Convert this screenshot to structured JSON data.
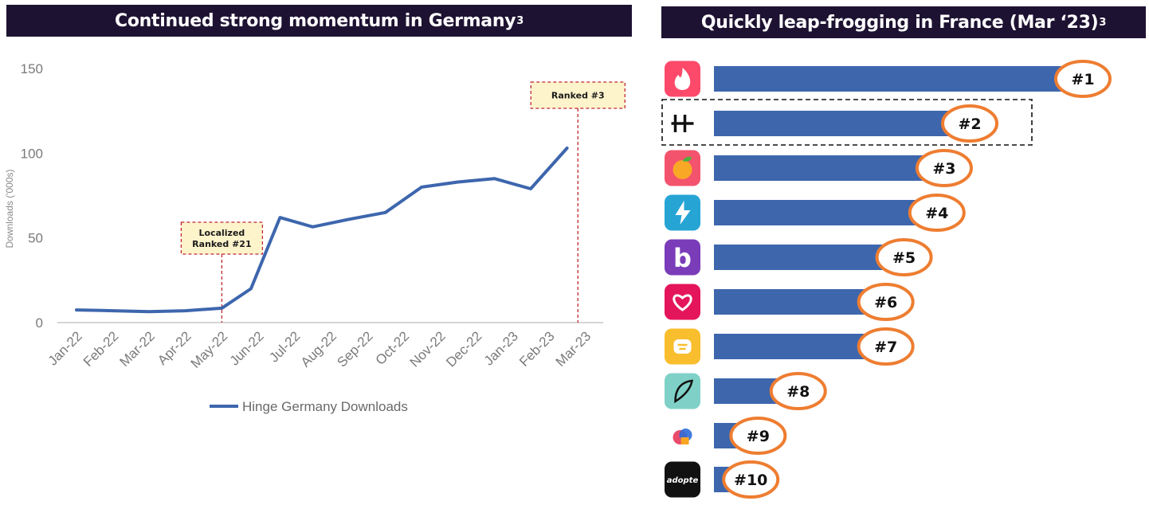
{
  "left_panel": {
    "title": "Continued strong momentum in Germany",
    "title_sup": "3"
  },
  "right_panel": {
    "title": "Quickly leap-frogging in France (Mar ‘23)",
    "title_sup": "3"
  },
  "chart_data": [
    {
      "type": "line",
      "title": "Continued strong momentum in Germany³",
      "ylabel": "Downloads ('000s)",
      "xlabel": "",
      "ylim": [
        0,
        150
      ],
      "yticks": [
        0,
        50,
        100,
        150
      ],
      "categories": [
        "Jan-22",
        "Feb-22",
        "Mar-22",
        "Apr-22",
        "May-22",
        "Jun-22",
        "Jul-22",
        "Aug-22",
        "Sep-22",
        "Oct-22",
        "Nov-22",
        "Dec-22",
        "Jan-23",
        "Feb-23",
        "Mar-23"
      ],
      "series": [
        {
          "name": "Hinge Germany Downloads",
          "color": "#3d66ad",
          "points": [
            {
              "x": 0,
              "y": 7.5
            },
            {
              "x": 1,
              "y": 7
            },
            {
              "x": 2,
              "y": 6.5
            },
            {
              "x": 3,
              "y": 7
            },
            {
              "x": 4,
              "y": 8.5
            },
            {
              "x": 4.8,
              "y": 20
            },
            {
              "x": 5.6,
              "y": 62
            },
            {
              "x": 6.5,
              "y": 56.5
            },
            {
              "x": 7.5,
              "y": 61
            },
            {
              "x": 8.5,
              "y": 65
            },
            {
              "x": 9.5,
              "y": 80
            },
            {
              "x": 10.5,
              "y": 83
            },
            {
              "x": 11.5,
              "y": 85
            },
            {
              "x": 12.5,
              "y": 79
            },
            {
              "x": 13.5,
              "y": 103
            }
          ]
        }
      ],
      "annotations": [
        {
          "x": 4,
          "lines": [
            "Localized",
            "Ranked #21"
          ]
        },
        {
          "x": 13.8,
          "lines": [
            "Ranked #3"
          ]
        }
      ],
      "legend_position": "bottom"
    },
    {
      "type": "bar",
      "orientation": "horizontal",
      "title": "Quickly leap-frogging in France (Mar ‘23)³",
      "bar_color": "#3d66ad",
      "highlight_color": "#ee7d31",
      "categories": [
        "#1",
        "#2",
        "#3",
        "#4",
        "#5",
        "#6",
        "#7",
        "#8",
        "#9",
        "#10"
      ],
      "values": [
        100,
        69,
        62,
        60,
        51,
        46,
        46,
        22,
        11,
        9
      ],
      "highlighted_category": "#2",
      "apps": [
        {
          "icon": "tinder-flame-icon",
          "color": "#fd4a6a"
        },
        {
          "icon": "hinge-h-icon",
          "color": "#111111"
        },
        {
          "icon": "peach-icon",
          "color": "#f4536d"
        },
        {
          "icon": "happn-bolt-icon",
          "color": "#26a5d5"
        },
        {
          "icon": "badoo-b-icon",
          "color": "#7a3cb8"
        },
        {
          "icon": "heart-icon",
          "color": "#e4155b"
        },
        {
          "icon": "bumble-icon",
          "color": "#f9be2d"
        },
        {
          "icon": "feather-icon",
          "color": "#7fd1c7"
        },
        {
          "icon": "lovoo-icon",
          "color": "#e94b6b"
        },
        {
          "icon": "adopte-wordmark",
          "color": "#111111",
          "text": "adopte"
        }
      ]
    }
  ]
}
